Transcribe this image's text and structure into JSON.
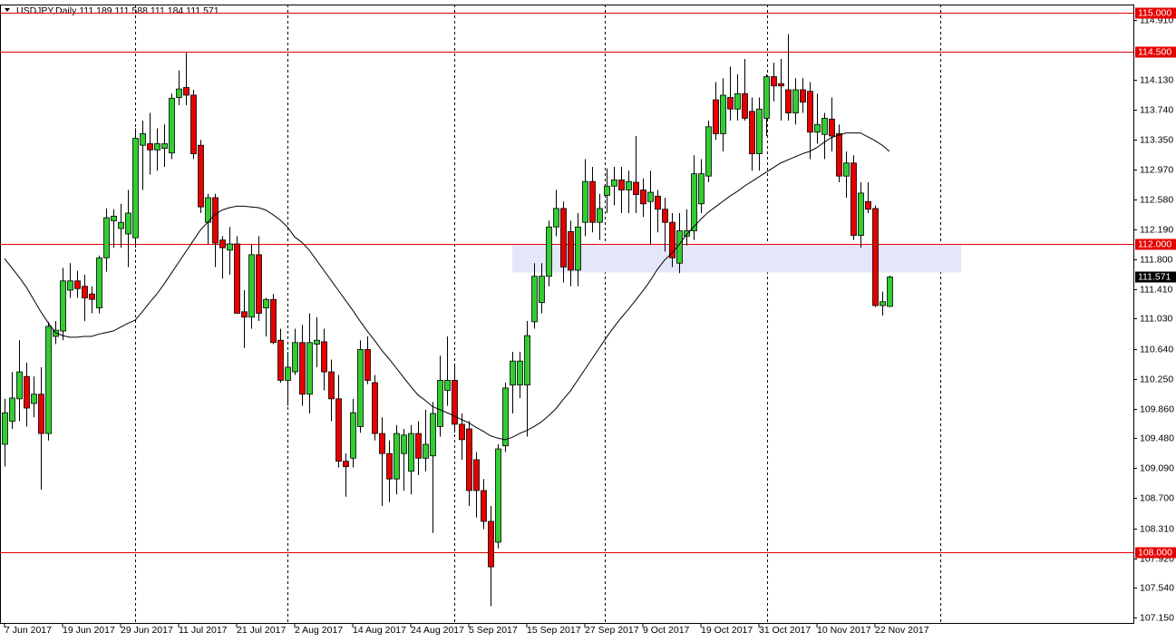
{
  "chart_data": {
    "type": "candlestick",
    "title": "USDJPY,Daily  111.189 111.588 111.184 111.571",
    "categories": [
      "7 Jun 2017",
      null,
      null,
      null,
      null,
      null,
      null,
      null,
      "19 Jun 2017",
      null,
      null,
      null,
      null,
      null,
      null,
      null,
      "29 Jun 2017",
      null,
      null,
      null,
      null,
      null,
      null,
      null,
      "11 Jul 2017",
      null,
      null,
      null,
      null,
      null,
      null,
      null,
      "21 Jul 2017",
      null,
      null,
      null,
      null,
      null,
      null,
      null,
      "2 Aug 2017",
      null,
      null,
      null,
      null,
      null,
      null,
      null,
      "14 Aug 2017",
      null,
      null,
      null,
      null,
      null,
      null,
      null,
      "24 Aug 2017",
      null,
      null,
      null,
      null,
      null,
      null,
      null,
      "5 Sep 2017",
      null,
      null,
      null,
      null,
      null,
      null,
      null,
      "15 Sep 2017",
      null,
      null,
      null,
      null,
      null,
      null,
      null,
      "27 Sep 2017",
      null,
      null,
      null,
      null,
      null,
      null,
      null,
      "9 Oct 2017",
      null,
      null,
      null,
      null,
      null,
      null,
      null,
      "19 Oct 2017",
      null,
      null,
      null,
      null,
      null,
      null,
      null,
      "31 Oct 2017",
      null,
      null,
      null,
      null,
      null,
      null,
      null,
      "10 Nov 2017",
      null,
      null,
      null,
      null,
      null,
      null,
      null,
      "22 Nov 2017",
      null,
      null
    ],
    "open": [
      109.4,
      109.7,
      109.99,
      110.28,
      109.93,
      110.05,
      109.54,
      110.8,
      110.87,
      111.4,
      111.52,
      111.45,
      111.35,
      111.17,
      111.82,
      112.3,
      112.2,
      112.13,
      112.08,
      113.28,
      113.3,
      113.22,
      113.24,
      113.18,
      113.9,
      114.03,
      113.93,
      113.28,
      112.28,
      112.6,
      112.05,
      111.92,
      112.0,
      111.12,
      111.05,
      111.86,
      111.17,
      111.28,
      110.75,
      110.23,
      110.34,
      110.72,
      110.05,
      110.7,
      110.73,
      110.34,
      109.99,
      109.18,
      109.22,
      109.63,
      110.63,
      110.2,
      109.54,
      109.28,
      108.95,
      109.28,
      109.05,
      109.54,
      109.22,
      109.25,
      109.63,
      110.1,
      110.23,
      109.66,
      109.6,
      109.2,
      108.8,
      108.4,
      108.13,
      109.38,
      110.17,
      110.17,
      110.17,
      110.99,
      111.24,
      111.58,
      112.22,
      112.46,
      112.16,
      111.66,
      112.28,
      112.81,
      112.28,
      112.63,
      112.75,
      112.83,
      112.7,
      112.8,
      112.7,
      112.55,
      112.62,
      112.45,
      112.28,
      111.75,
      112.1,
      112.17,
      112.52,
      112.88,
      113.87,
      113.43,
      113.9,
      113.75,
      113.95,
      113.72,
      113.17,
      113.63,
      114.17,
      114.08,
      114.0,
      113.7,
      114.0,
      113.98,
      113.45,
      113.42,
      113.62,
      113.43,
      112.88,
      113.05,
      112.11,
      112.55,
      112.46,
      111.2,
      111.189
    ],
    "high": [
      109.99,
      110.34,
      110.75,
      110.46,
      110.28,
      110.4,
      110.99,
      111.0,
      111.69,
      111.75,
      111.65,
      111.6,
      111.45,
      111.85,
      112.46,
      112.45,
      112.52,
      112.7,
      113.5,
      113.6,
      113.7,
      113.5,
      113.55,
      113.95,
      114.25,
      114.48,
      114.0,
      113.35,
      112.65,
      112.65,
      112.1,
      112.22,
      112.1,
      111.4,
      112.0,
      112.1,
      111.3,
      111.35,
      110.9,
      110.6,
      110.9,
      110.95,
      111.1,
      111.05,
      110.9,
      110.5,
      110.3,
      109.28,
      109.99,
      110.75,
      110.8,
      110.3,
      109.75,
      109.45,
      109.65,
      109.6,
      109.65,
      109.7,
      109.85,
      109.95,
      110.55,
      110.8,
      110.45,
      109.8,
      109.7,
      109.3,
      108.95,
      108.6,
      109.4,
      110.2,
      110.6,
      110.6,
      111.0,
      111.75,
      111.75,
      112.3,
      112.7,
      112.55,
      112.3,
      112.4,
      113.1,
      113.0,
      112.65,
      112.98,
      113.0,
      113.0,
      112.95,
      113.4,
      112.85,
      112.95,
      112.7,
      112.6,
      112.4,
      112.4,
      112.45,
      113.15,
      113.1,
      113.6,
      114.1,
      114.15,
      114.3,
      114.2,
      114.4,
      113.9,
      113.9,
      114.2,
      114.35,
      114.4,
      114.72,
      114.15,
      114.15,
      114.1,
      113.95,
      113.7,
      113.9,
      113.55,
      113.2,
      113.15,
      112.8,
      112.8,
      112.5,
      111.38,
      111.588
    ],
    "low": [
      109.11,
      109.6,
      109.7,
      109.63,
      109.75,
      108.81,
      109.45,
      110.7,
      110.75,
      111.3,
      111.3,
      111.0,
      111.1,
      111.1,
      111.64,
      111.95,
      111.95,
      111.7,
      111.95,
      112.7,
      112.9,
      112.95,
      113.0,
      113.1,
      113.8,
      113.8,
      113.1,
      112.4,
      112.0,
      111.7,
      111.55,
      111.6,
      111.1,
      110.65,
      110.9,
      111.0,
      110.8,
      110.7,
      110.2,
      109.9,
      110.3,
      109.9,
      109.8,
      110.4,
      110.1,
      109.7,
      109.1,
      108.72,
      109.1,
      109.55,
      110.18,
      109.45,
      108.6,
      108.65,
      108.75,
      108.8,
      108.75,
      109.0,
      109.05,
      108.25,
      109.5,
      109.9,
      109.55,
      109.2,
      108.6,
      108.45,
      108.3,
      107.3,
      108.05,
      109.3,
      109.8,
      110.0,
      109.5,
      110.9,
      111.1,
      111.45,
      112.1,
      111.5,
      111.45,
      111.45,
      112.1,
      112.15,
      112.05,
      112.4,
      112.5,
      112.4,
      112.4,
      112.4,
      112.35,
      111.99,
      112.15,
      111.9,
      111.7,
      111.62,
      111.98,
      112.05,
      112.4,
      112.8,
      113.35,
      113.2,
      113.6,
      113.6,
      113.6,
      112.95,
      112.95,
      113.4,
      113.85,
      113.6,
      113.6,
      113.55,
      113.7,
      113.1,
      113.3,
      113.1,
      113.2,
      112.8,
      112.6,
      112.05,
      111.95,
      112.4,
      111.18,
      111.07,
      111.184
    ],
    "close": [
      109.81,
      110.0,
      110.34,
      109.87,
      110.05,
      109.54,
      110.93,
      110.88,
      111.52,
      111.52,
      111.42,
      111.3,
      111.28,
      111.82,
      112.34,
      112.36,
      112.28,
      112.4,
      113.37,
      113.43,
      113.22,
      113.3,
      113.3,
      113.89,
      114.01,
      113.93,
      113.17,
      112.48,
      112.6,
      112.01,
      111.95,
      112.0,
      111.1,
      111.05,
      111.86,
      111.1,
      111.28,
      110.72,
      110.23,
      110.4,
      110.72,
      110.05,
      110.72,
      110.75,
      110.34,
      109.99,
      109.18,
      109.11,
      109.81,
      110.63,
      110.23,
      109.54,
      109.28,
      108.95,
      109.54,
      109.52,
      109.54,
      109.22,
      109.4,
      109.8,
      110.23,
      110.23,
      109.66,
      109.46,
      108.8,
      108.8,
      108.4,
      107.81,
      109.34,
      110.13,
      110.48,
      110.48,
      110.81,
      111.58,
      111.58,
      112.22,
      112.46,
      111.7,
      111.66,
      112.22,
      112.81,
      112.28,
      112.46,
      112.75,
      112.83,
      112.7,
      112.81,
      112.64,
      112.52,
      112.67,
      112.45,
      112.28,
      111.82,
      112.17,
      112.17,
      112.91,
      112.91,
      113.52,
      113.43,
      113.93,
      113.75,
      113.95,
      113.63,
      113.17,
      113.75,
      114.17,
      114.05,
      114.05,
      113.7,
      114.0,
      113.84,
      113.45,
      113.55,
      113.63,
      113.4,
      112.88,
      113.05,
      112.11,
      112.66,
      112.45,
      111.2,
      111.25,
      111.571
    ],
    "ma": [
      111.81,
      111.69,
      111.57,
      111.44,
      111.28,
      111.12,
      110.98,
      110.85,
      110.81,
      110.79,
      110.79,
      110.8,
      110.8,
      110.83,
      110.85,
      110.87,
      110.92,
      110.97,
      111.01,
      111.12,
      111.24,
      111.35,
      111.48,
      111.62,
      111.76,
      111.9,
      112.04,
      112.18,
      112.28,
      112.38,
      112.44,
      112.47,
      112.49,
      112.49,
      112.48,
      112.47,
      112.44,
      112.38,
      112.31,
      112.22,
      112.09,
      112.02,
      111.92,
      111.79,
      111.66,
      111.53,
      111.4,
      111.27,
      111.14,
      111.0,
      110.87,
      110.75,
      110.62,
      110.51,
      110.39,
      110.27,
      110.15,
      110.04,
      109.97,
      109.89,
      109.85,
      109.81,
      109.77,
      109.72,
      109.68,
      109.62,
      109.57,
      109.51,
      109.48,
      109.46,
      109.49,
      109.54,
      109.58,
      109.63,
      109.69,
      109.77,
      109.86,
      109.98,
      110.09,
      110.23,
      110.37,
      110.51,
      110.65,
      110.79,
      110.92,
      111.04,
      111.15,
      111.27,
      111.39,
      111.52,
      111.67,
      111.79,
      111.88,
      111.99,
      112.12,
      112.22,
      112.32,
      112.41,
      112.48,
      112.55,
      112.62,
      112.68,
      112.75,
      112.81,
      112.87,
      112.93,
      112.99,
      113.05,
      113.09,
      113.13,
      113.17,
      113.2,
      113.25,
      113.32,
      113.38,
      113.41,
      113.44,
      113.44,
      113.44,
      113.39,
      113.34,
      113.28,
      113.2
    ],
    "up_color": "#32cd32",
    "down_color": "#e60000",
    "ma_color": "#000000",
    "level_color": "#e60000",
    "zone_color": "#e6e6fa",
    "levels": [
      {
        "value": 115,
        "label": "115.000"
      },
      {
        "value": 114.5,
        "label": "114.500"
      },
      {
        "value": 112,
        "label": "112.000"
      },
      {
        "value": 108,
        "label": "108.000"
      }
    ],
    "zone": [
      111.63,
      111.99
    ],
    "ylim": [
      107.07,
      115.106
    ],
    "yticks": [
      {
        "value": 114.91,
        "label": "114.910"
      },
      {
        "value": 114.13,
        "label": "114.130"
      },
      {
        "value": 113.74,
        "label": "113.740"
      },
      {
        "value": 113.35,
        "label": "113.350"
      },
      {
        "value": 112.97,
        "label": "112.970"
      },
      {
        "value": 112.58,
        "label": "112.580"
      },
      {
        "value": 112.19,
        "label": "112.190"
      },
      {
        "value": 111.8,
        "label": "111.800"
      },
      {
        "value": 111.41,
        "label": "111.410"
      },
      {
        "value": 111.03,
        "label": "111.030"
      },
      {
        "value": 110.64,
        "label": "110.640"
      },
      {
        "value": 110.25,
        "label": "110.250"
      },
      {
        "value": 109.86,
        "label": "109.860"
      },
      {
        "value": 109.48,
        "label": "109.480"
      },
      {
        "value": 109.09,
        "label": "109.090"
      },
      {
        "value": 108.7,
        "label": "108.700"
      },
      {
        "value": 108.31,
        "label": "108.310"
      },
      {
        "value": 107.92,
        "label": "107.920"
      },
      {
        "value": 107.54,
        "label": "107.540"
      },
      {
        "value": 107.15,
        "label": "107.150"
      }
    ]
  }
}
